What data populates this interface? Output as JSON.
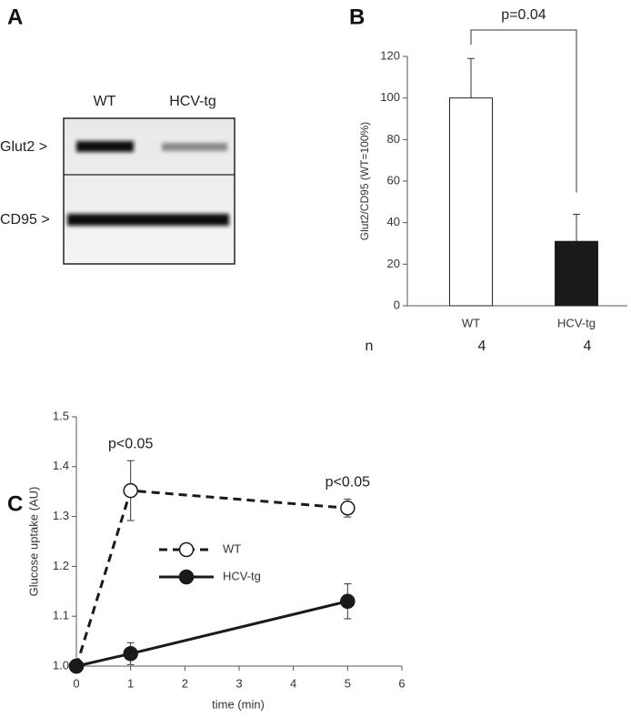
{
  "blot": {
    "panel": "A",
    "lanes": [
      "WT",
      "HCV-tg"
    ],
    "rows": [
      "Glut2 >",
      "CD95 >"
    ]
  },
  "chart_data": [
    {
      "type": "bar",
      "panel": "B",
      "ylabel": "Glut2/CD95 (WT=100%)",
      "categories": [
        "WT",
        "HCV-tg"
      ],
      "values": [
        100,
        31
      ],
      "errors": [
        19,
        13
      ],
      "colors": [
        "#ffffff",
        "#1a1a1a"
      ],
      "ylim": [
        0,
        120
      ],
      "yticks": [
        0,
        20,
        40,
        60,
        80,
        100,
        120
      ],
      "annotation": "p=0.04",
      "n_label": "n",
      "n_values": [
        4,
        4
      ]
    },
    {
      "type": "line",
      "panel": "C",
      "xlabel": "time (min)",
      "ylabel": "Glucose uptake (AU)",
      "x": [
        0,
        1,
        5
      ],
      "series": [
        {
          "name": "WT",
          "color": "#1a1a1a",
          "line_style": "dashed",
          "marker_fill": "#ffffff",
          "values": [
            1.0,
            1.352,
            1.317
          ],
          "errors": [
            0,
            0.06,
            0.018
          ]
        },
        {
          "name": "HCV-tg",
          "color": "#1a1a1a",
          "line_style": "solid",
          "marker_fill": "#1a1a1a",
          "values": [
            1.0,
            1.025,
            1.13
          ],
          "errors": [
            0,
            0.022,
            0.035
          ]
        }
      ],
      "xlim": [
        0,
        6
      ],
      "xticks": [
        0,
        1,
        2,
        3,
        4,
        5,
        6
      ],
      "ylim": [
        1.0,
        1.5
      ],
      "yticks": [
        {
          "value": 1.0,
          "label": "1.0"
        },
        {
          "value": 1.1,
          "label": "1.1"
        },
        {
          "value": 1.2,
          "label": "1.2"
        },
        {
          "value": 1.3,
          "label": "1.3"
        },
        {
          "value": 1.4,
          "label": "1.4"
        },
        {
          "value": 1.5,
          "label": "1.5"
        }
      ],
      "annotations": [
        {
          "text": "p<0.05",
          "x": 1
        },
        {
          "text": "p<0.05",
          "x": 5
        }
      ]
    }
  ]
}
